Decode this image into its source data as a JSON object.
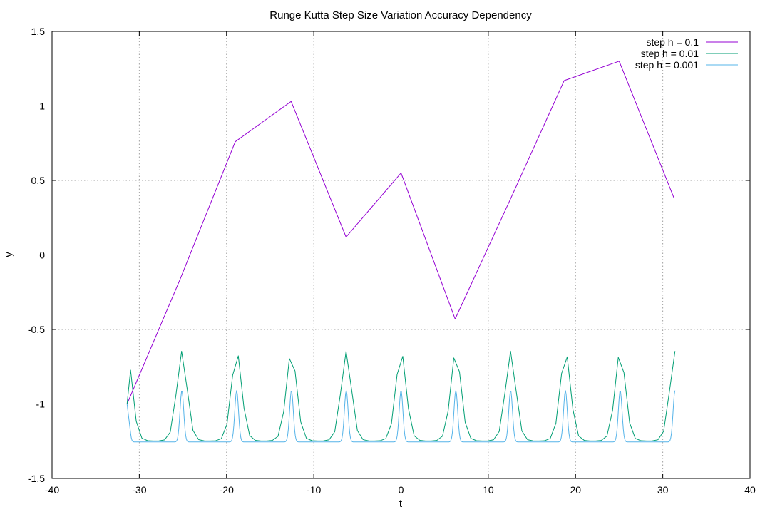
{
  "chart_data": {
    "type": "line",
    "title": "Runge Kutta Step Size Variation Accuracy Dependency",
    "xlabel": "t",
    "ylabel": "y",
    "xlim": [
      -40,
      40
    ],
    "ylim": [
      -1.5,
      1.5
    ],
    "xticks": [
      -40,
      -30,
      -20,
      -10,
      0,
      10,
      20,
      30,
      40
    ],
    "yticks": [
      -1.5,
      -1,
      -0.5,
      0,
      0.5,
      1,
      1.5
    ],
    "xtick_labels": [
      "-40",
      "-30",
      "-20",
      "-10",
      "0",
      "10",
      "20",
      "30",
      "40"
    ],
    "ytick_labels": [
      "-1.5",
      "-1",
      "-0.5",
      "0",
      "0.5",
      "1",
      "1.5"
    ],
    "grid": true,
    "legend_position": "top-right",
    "series": [
      {
        "name": "step h = 0.1",
        "color": "#9400d3",
        "style": "linear",
        "points": [
          [
            -31.4,
            -1.0
          ],
          [
            -25.3,
            -0.16
          ],
          [
            -19.0,
            0.76
          ],
          [
            -12.6,
            1.03
          ],
          [
            -6.3,
            0.12
          ],
          [
            0.0,
            0.55
          ],
          [
            6.2,
            -0.43
          ],
          [
            12.5,
            0.37
          ],
          [
            18.7,
            1.17
          ],
          [
            25.0,
            1.3
          ],
          [
            31.3,
            0.38
          ]
        ]
      },
      {
        "name": "step h = 0.01",
        "color": "#009e73",
        "style": "periodic",
        "start": [
          -31.4,
          -1.0
        ],
        "t_range": [
          -31.0,
          31.4
        ],
        "period": 6.28,
        "phase": 0.0,
        "min": -1.25,
        "max": -0.645,
        "sharpness": 3,
        "sample_step": 0.65
      },
      {
        "name": "step h = 0.001",
        "color": "#56b4e9",
        "style": "periodic",
        "start": [
          -31.4,
          -1.0
        ],
        "t_range": [
          -31.0,
          31.4
        ],
        "period": 6.28,
        "phase": 0.0,
        "min": -1.255,
        "max": -0.91,
        "sharpness": 22,
        "sample_step": 0.08
      }
    ]
  }
}
